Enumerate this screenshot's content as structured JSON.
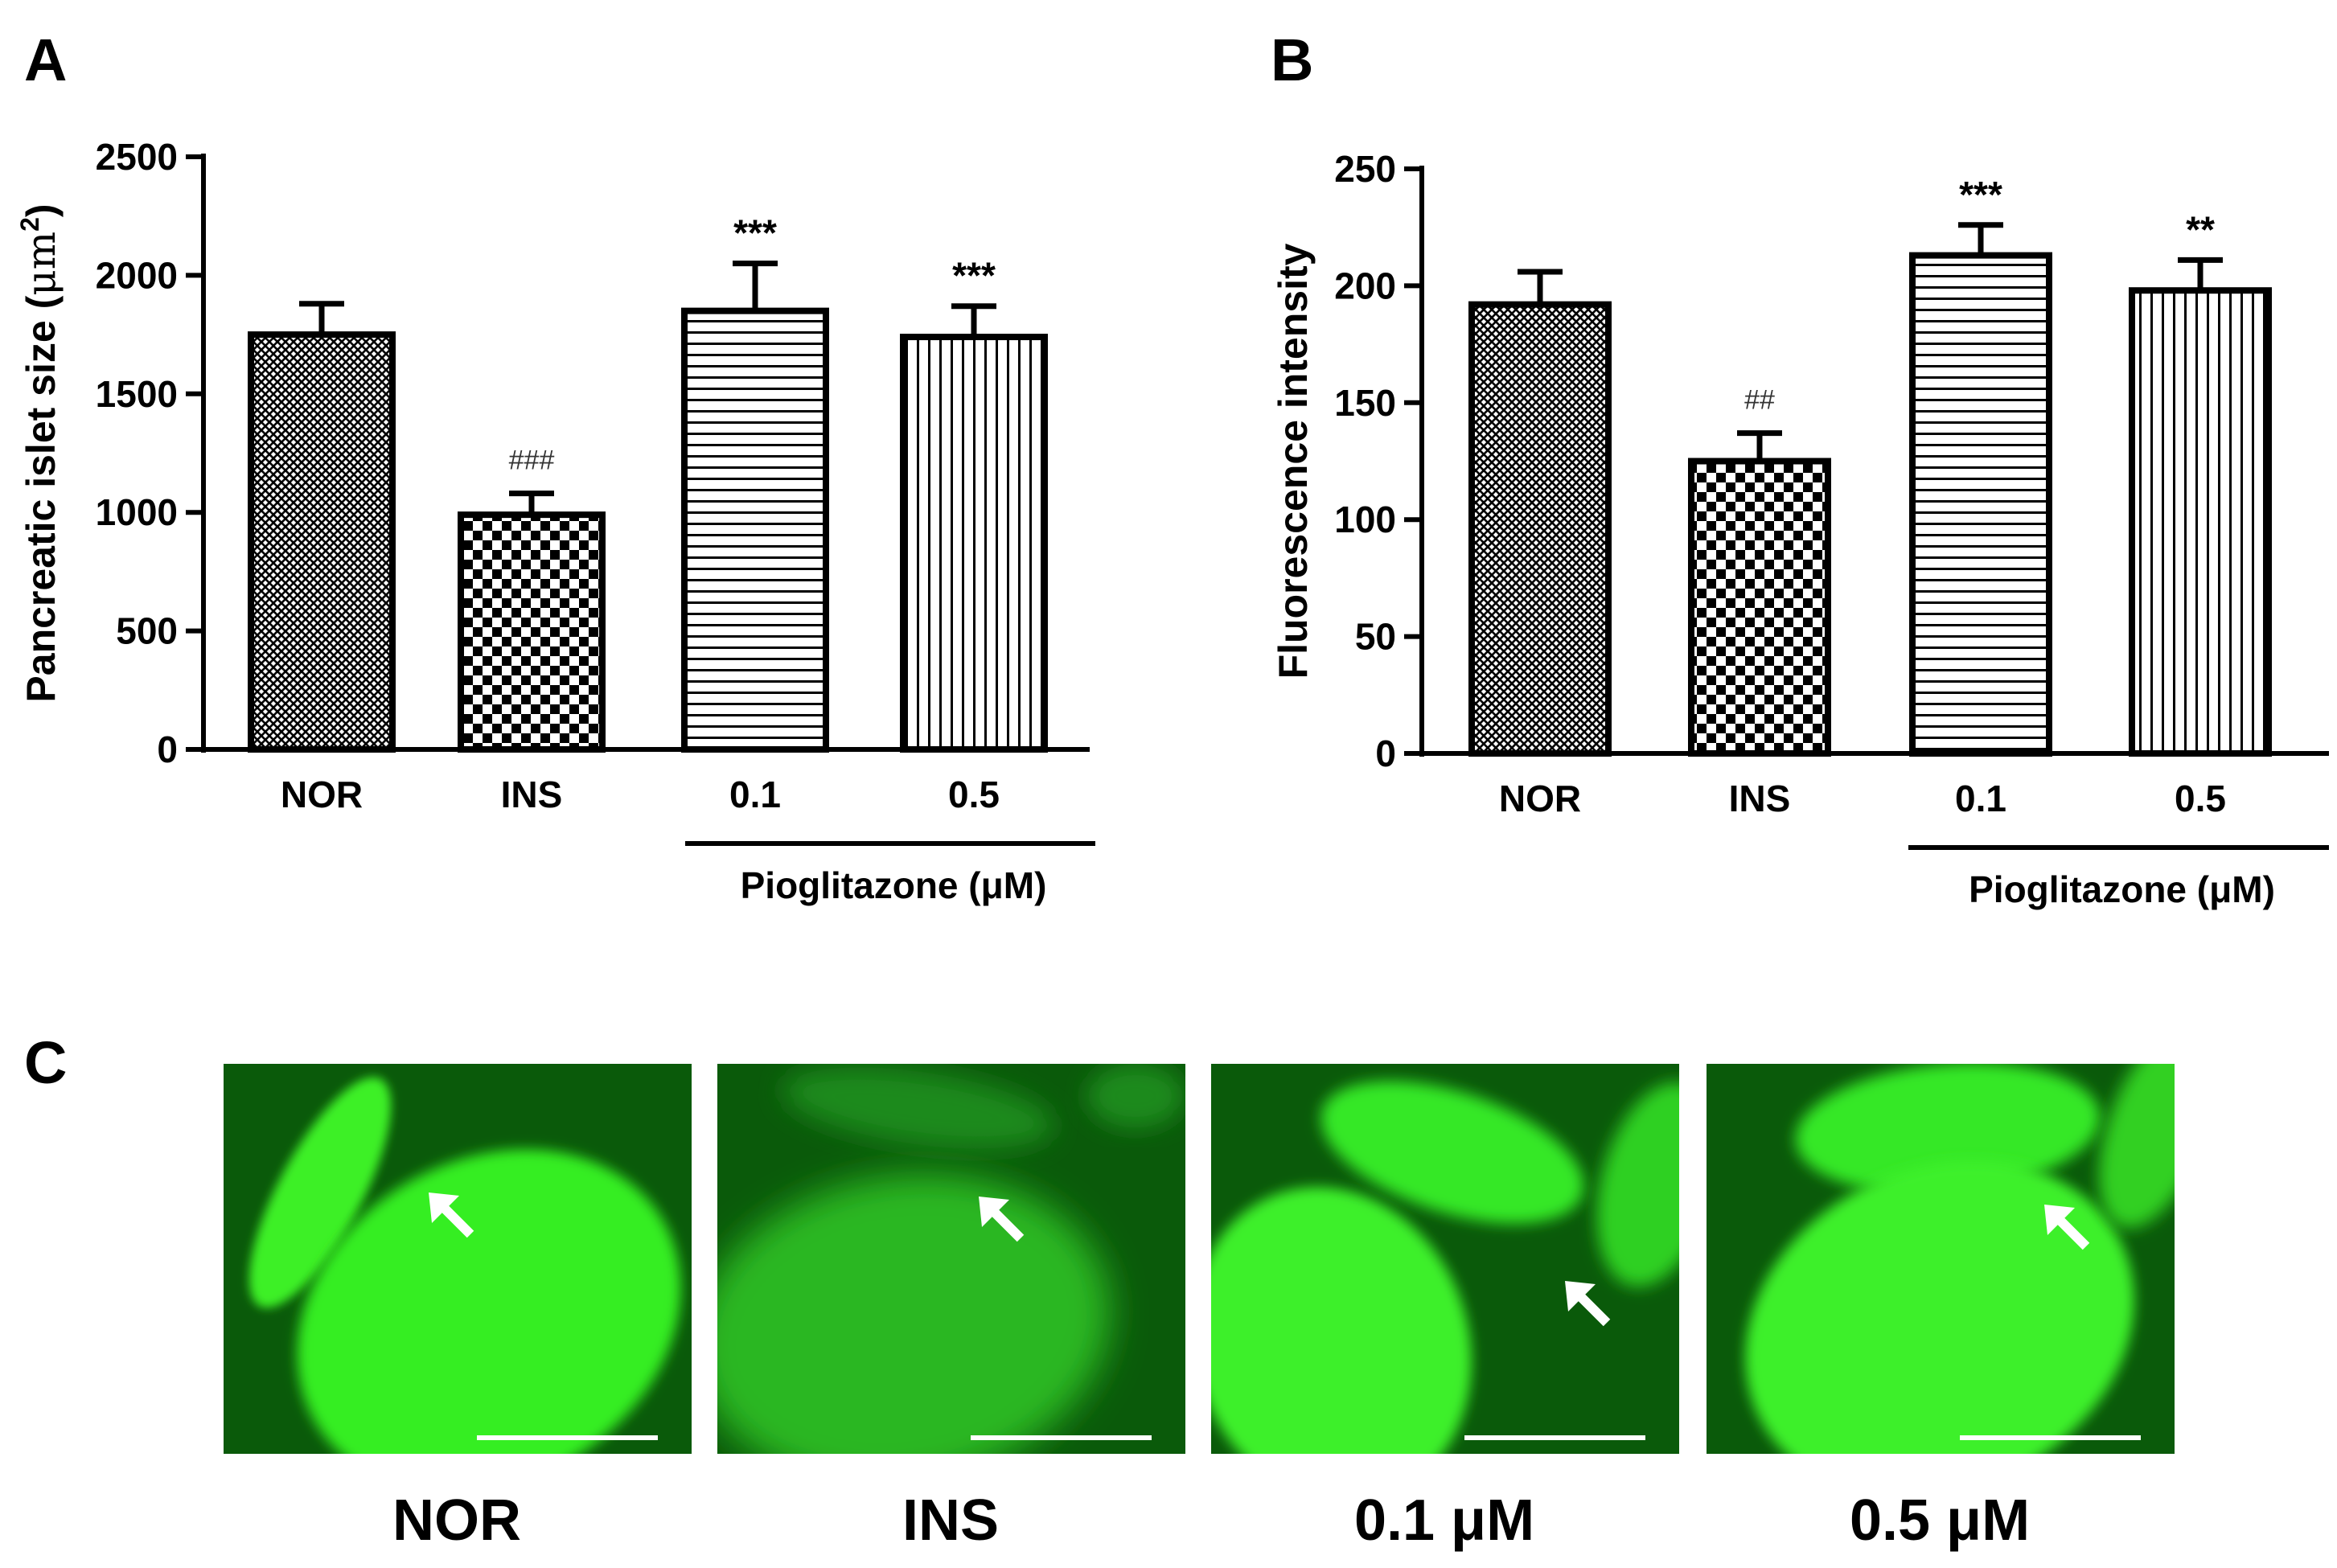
{
  "panels": {
    "a_letter": "A",
    "b_letter": "B",
    "c_letter": "C"
  },
  "colors": {
    "ink": "#000000",
    "fluorescence_bright": "#33ee22",
    "fluorescence_dark": "#0a5a0a",
    "scale_bar": "#ffffff"
  },
  "chart_data": [
    {
      "panel": "A",
      "type": "bar",
      "categories": [
        "NOR",
        "INS",
        "0.1",
        "0.5"
      ],
      "values": [
        1750,
        990,
        1850,
        1740
      ],
      "errors": [
        130,
        90,
        200,
        130
      ],
      "annotations": [
        "",
        "###",
        "***",
        "***"
      ],
      "patterns": [
        "crosshatch",
        "checker",
        "horizontal",
        "vertical"
      ],
      "ylabel": "Pancreatic islet size (μm2)",
      "ylabel_main": "Pancreatic islet size (",
      "ylabel_unit": "μm",
      "ylabel_sup": "2",
      "ylabel_close": ")",
      "ylim": [
        0,
        2500
      ],
      "yticks": [
        0,
        500,
        1000,
        1500,
        2000,
        2500
      ],
      "group_label": "Pioglitazone (μM)",
      "group_categories": [
        "0.1",
        "0.5"
      ],
      "grid": false,
      "legend": "none"
    },
    {
      "panel": "B",
      "type": "bar",
      "categories": [
        "NOR",
        "INS",
        "0.1",
        "0.5"
      ],
      "values": [
        192,
        125,
        213,
        198
      ],
      "errors": [
        14,
        12,
        13,
        13
      ],
      "annotations": [
        "",
        "##",
        "***",
        "**"
      ],
      "patterns": [
        "crosshatch",
        "checker",
        "horizontal",
        "vertical"
      ],
      "ylabel": "Fluorescence intensity",
      "ylim": [
        0,
        250
      ],
      "yticks": [
        0,
        50,
        100,
        150,
        200,
        250
      ],
      "group_label": "Pioglitazone (μM)",
      "group_categories": [
        "0.1",
        "0.5"
      ],
      "grid": false,
      "legend": "none"
    }
  ],
  "images": [
    {
      "label": "NOR",
      "arrow": "pointing up-left at small islet",
      "scale_bar": true
    },
    {
      "label": "INS",
      "arrow": "pointing up-left at small islet",
      "scale_bar": true
    },
    {
      "label": "0.1 μM",
      "arrow": "pointing up-left at small islet",
      "scale_bar": true
    },
    {
      "label": "0.5 μM",
      "arrow": "pointing up-left at small islet",
      "scale_bar": true
    }
  ]
}
